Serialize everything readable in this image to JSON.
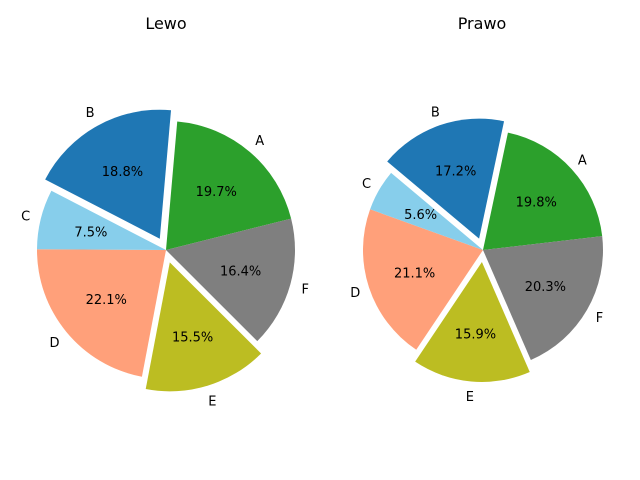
{
  "chart_data": [
    {
      "type": "pie",
      "title": "Lewo",
      "categories": [
        "A",
        "F",
        "E",
        "D",
        "C",
        "B"
      ],
      "values": [
        19.7,
        16.4,
        15.5,
        22.1,
        7.5,
        18.8
      ],
      "value_labels": [
        "19.7%",
        "16.4%",
        "15.5%",
        "22.1%",
        "7.5%",
        "18.8%"
      ],
      "exploded": [
        "E",
        "B"
      ],
      "colors": {
        "A": "#2ca02c",
        "F": "#7f7f7f",
        "E": "#bcbd22",
        "D": "#ffa07a",
        "C": "#87ceeb",
        "B": "#1f77b4"
      },
      "direction": "clockwise"
    },
    {
      "type": "pie",
      "title": "Prawo",
      "categories": [
        "A",
        "F",
        "E",
        "D",
        "C",
        "B"
      ],
      "values": [
        19.8,
        20.3,
        15.9,
        21.1,
        5.6,
        17.2
      ],
      "value_labels": [
        "19.8%",
        "20.3%",
        "15.9%",
        "21.1%",
        "5.6%",
        "17.2%"
      ],
      "exploded": [
        "E",
        "B"
      ],
      "colors": {
        "A": "#2ca02c",
        "F": "#7f7f7f",
        "E": "#bcbd22",
        "D": "#ffa07a",
        "C": "#87ceeb",
        "B": "#1f77b4"
      },
      "direction": "clockwise"
    }
  ]
}
